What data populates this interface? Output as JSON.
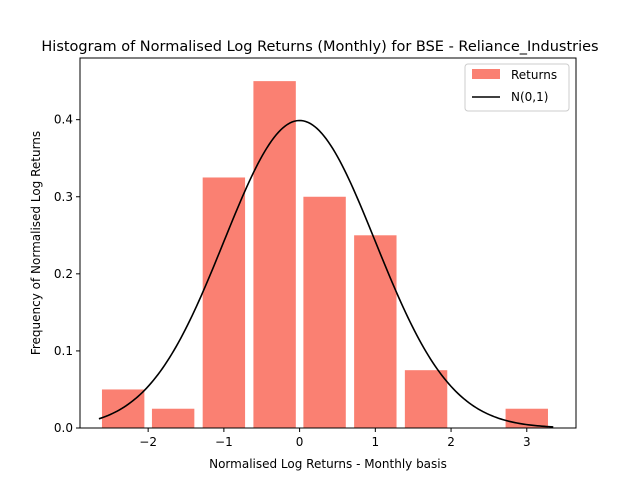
{
  "chart_data": {
    "type": "bar",
    "title": "Histogram of Normalised Log Returns (Monthly) for BSE - Reliance_Industries",
    "xlabel": "Normalised Log Returns - Monthly basis",
    "ylabel": "Frequency of Normalised Log Returns",
    "xlim": [
      -2.9,
      3.65
    ],
    "ylim": [
      0,
      0.48
    ],
    "xticks": [
      -2,
      -1,
      0,
      1,
      2,
      3
    ],
    "xtick_labels": [
      "−2",
      "−1",
      "0",
      "1",
      "2",
      "3"
    ],
    "yticks": [
      0.0,
      0.1,
      0.2,
      0.3,
      0.4
    ],
    "ytick_labels": [
      "0.0",
      "0.1",
      "0.2",
      "0.3",
      "0.4"
    ],
    "grid": false,
    "legend_position": "top-right",
    "bins": {
      "centers": [
        -2.33,
        -1.67,
        -1.0,
        -0.33,
        0.33,
        1.0,
        1.67,
        3.0
      ],
      "width": 0.56,
      "values": [
        0.05,
        0.025,
        0.325,
        0.45,
        0.3,
        0.25,
        0.075,
        0.025
      ]
    },
    "series": [
      {
        "name": "Returns",
        "kind": "bar",
        "color": "#fa8072"
      },
      {
        "name": "N(0,1)",
        "kind": "line",
        "color": "#000000",
        "x_range": [
          -2.65,
          3.35
        ]
      }
    ]
  }
}
